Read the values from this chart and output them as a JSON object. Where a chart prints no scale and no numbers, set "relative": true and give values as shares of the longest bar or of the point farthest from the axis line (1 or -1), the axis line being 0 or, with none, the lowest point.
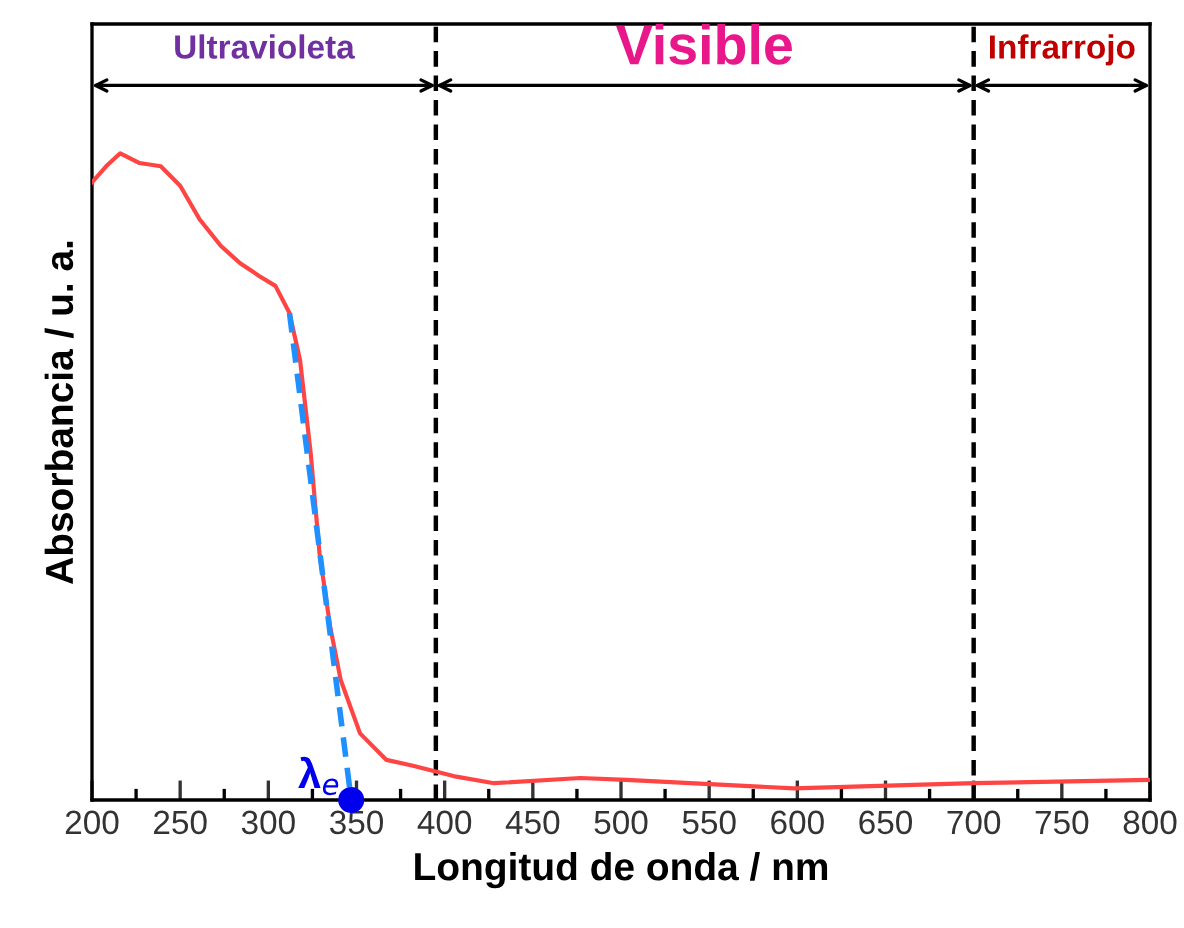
{
  "chart_data": {
    "type": "line",
    "relative": true,
    "xlabel": "Longitud de onda / nm",
    "ylabel": "Absorbancia / u. a.",
    "xlim": [
      200,
      800
    ],
    "xticks": [
      200,
      250,
      300,
      350,
      400,
      450,
      500,
      550,
      600,
      650,
      700,
      750,
      800
    ],
    "series": [
      {
        "color": "#ff4444",
        "x": [
          200,
          208,
          216,
          227,
          239,
          250,
          261,
          273,
          284,
          295,
          304,
          312,
          318,
          324,
          329,
          335,
          341,
          352,
          367,
          382,
          405,
          428,
          477,
          503,
          598,
          700,
          800
        ],
        "values": [
          0.955,
          0.98,
          1,
          0.985,
          0.98,
          0.95,
          0.898,
          0.857,
          0.83,
          0.81,
          0.795,
          0.753,
          0.68,
          0.537,
          0.382,
          0.269,
          0.186,
          0.103,
          0.062,
          0.053,
          0.037,
          0.026,
          0.034,
          0.031,
          0.018,
          0.026,
          0.031
        ]
      },
      {
        "color": "#1e90ff",
        "line_style": "dashed",
        "x": [
          312,
          347
        ],
        "values": [
          0.753,
          0
        ]
      },
      {
        "type": "scatter",
        "marker": "circle",
        "color": "#0000ee",
        "x": [
          347
        ],
        "values": [
          0
        ]
      }
    ],
    "ref_lines": [
      {
        "axis": "x",
        "value": 395,
        "color": "#000000",
        "line_style": "dashed"
      },
      {
        "axis": "x",
        "value": 700,
        "color": "#000000",
        "line_style": "dashed"
      }
    ],
    "annotations": [
      "Ultravioleta",
      "Visible",
      "Infrarrojo",
      {
        "text": "λ$_{e}$",
        "x": 347,
        "y": 0
      }
    ]
  }
}
